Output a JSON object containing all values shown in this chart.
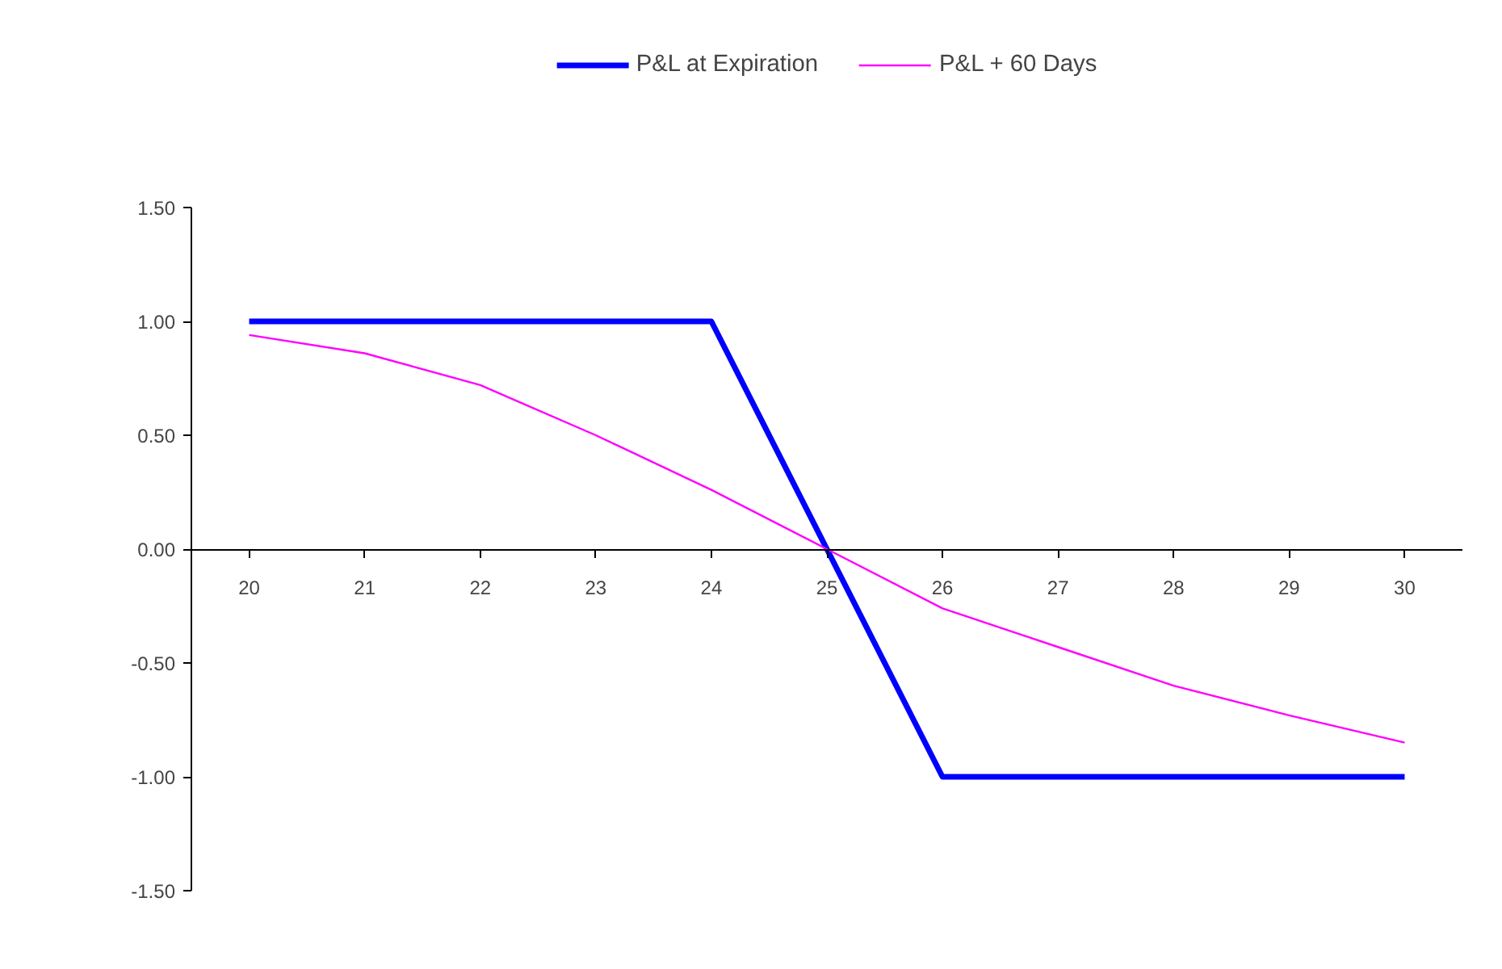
{
  "chart_data": {
    "type": "line",
    "categories": [
      "20",
      "21",
      "22",
      "23",
      "24",
      "25",
      "26",
      "27",
      "28",
      "29",
      "30"
    ],
    "series": [
      {
        "name": "P&L at Expiration",
        "color": "#0000ff",
        "values": [
          1,
          1,
          1,
          1,
          1,
          0,
          -1,
          -1,
          -1,
          -1,
          -1
        ]
      },
      {
        "name": "P&L + 60 Days",
        "color": "#ff00ff",
        "values": [
          0.94,
          0.86,
          0.72,
          0.5,
          0.26,
          0,
          -0.26,
          -0.43,
          -0.6,
          -0.73,
          -0.85
        ]
      }
    ],
    "ylim": [
      -1.5,
      1.5
    ],
    "yticks": [
      {
        "value": -1.5,
        "label": "-1.50"
      },
      {
        "value": -1.0,
        "label": "-1.00"
      },
      {
        "value": -0.5,
        "label": "-0.50"
      },
      {
        "value": 0,
        "label": "0.00"
      },
      {
        "value": 0.5,
        "label": "0.50"
      },
      {
        "value": 1.0,
        "label": "1.00"
      },
      {
        "value": 1.5,
        "label": "1.50"
      }
    ],
    "grid": false,
    "legend": "top",
    "marker": "none",
    "line_style": "solid"
  }
}
